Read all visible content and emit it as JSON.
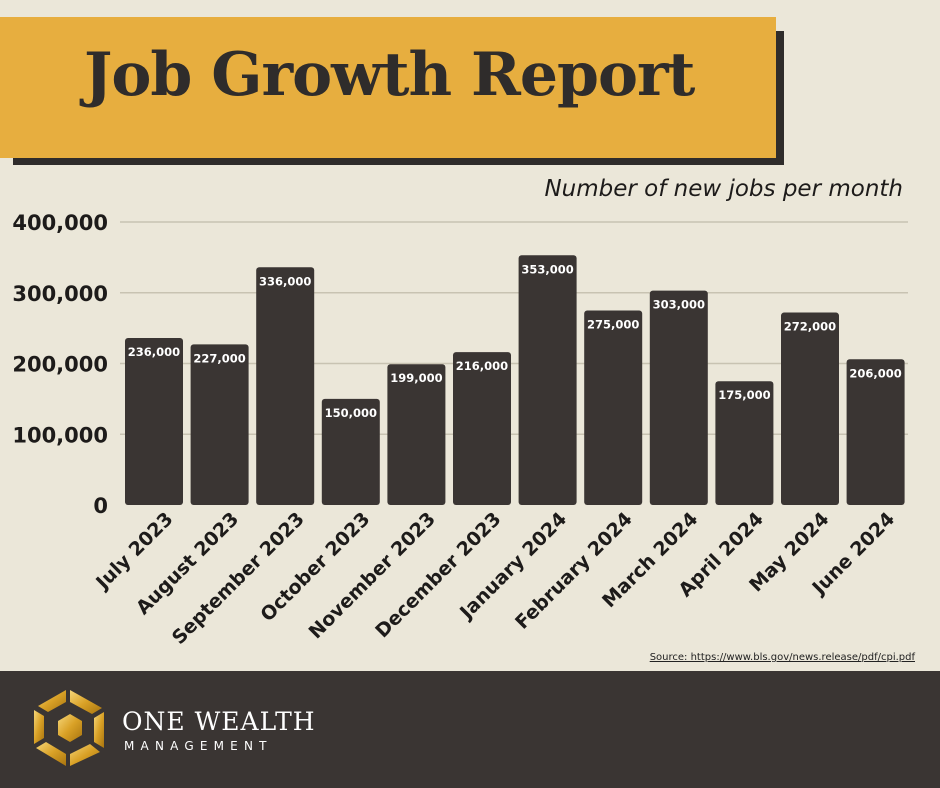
{
  "header": {
    "title": "Job Growth Report"
  },
  "chart_data": {
    "type": "bar",
    "title": "",
    "subtitle": "Number of new jobs per month",
    "xlabel": "",
    "ylabel": "",
    "ylim": [
      0,
      400000
    ],
    "yticks": [
      "0",
      "100,000",
      "200,000",
      "300,000",
      "400,000"
    ],
    "grid": true,
    "categories": [
      "July 2023",
      "August 2023",
      "September 2023",
      "October 2023",
      "November 2023",
      "December 2023",
      "January 2024",
      "February 2024",
      "March 2024",
      "April 2024",
      "May 2024",
      "June 2024"
    ],
    "values": [
      236000,
      227000,
      336000,
      150000,
      199000,
      216000,
      353000,
      275000,
      303000,
      175000,
      272000,
      206000
    ],
    "data_labels": [
      "236,000",
      "227,000",
      "336,000",
      "150,000",
      "199,000",
      "216,000",
      "353,000",
      "275,000",
      "303,000",
      "175,000",
      "272,000",
      "206,000"
    ]
  },
  "source": {
    "text": "Source:  https://www.bls.gov/news.release/pdf/cpi.pdf"
  },
  "footer": {
    "brand_name": "ONE WEALTH",
    "brand_sub": "MANAGEMENT",
    "logo_icon": "hexagon-swirl-logo-icon",
    "background_color": "#3a3533"
  },
  "colors": {
    "background": "#ebe7d9",
    "title_band": "#e7ae3f",
    "bar": "#3a3533",
    "gold": "#e0a730"
  }
}
